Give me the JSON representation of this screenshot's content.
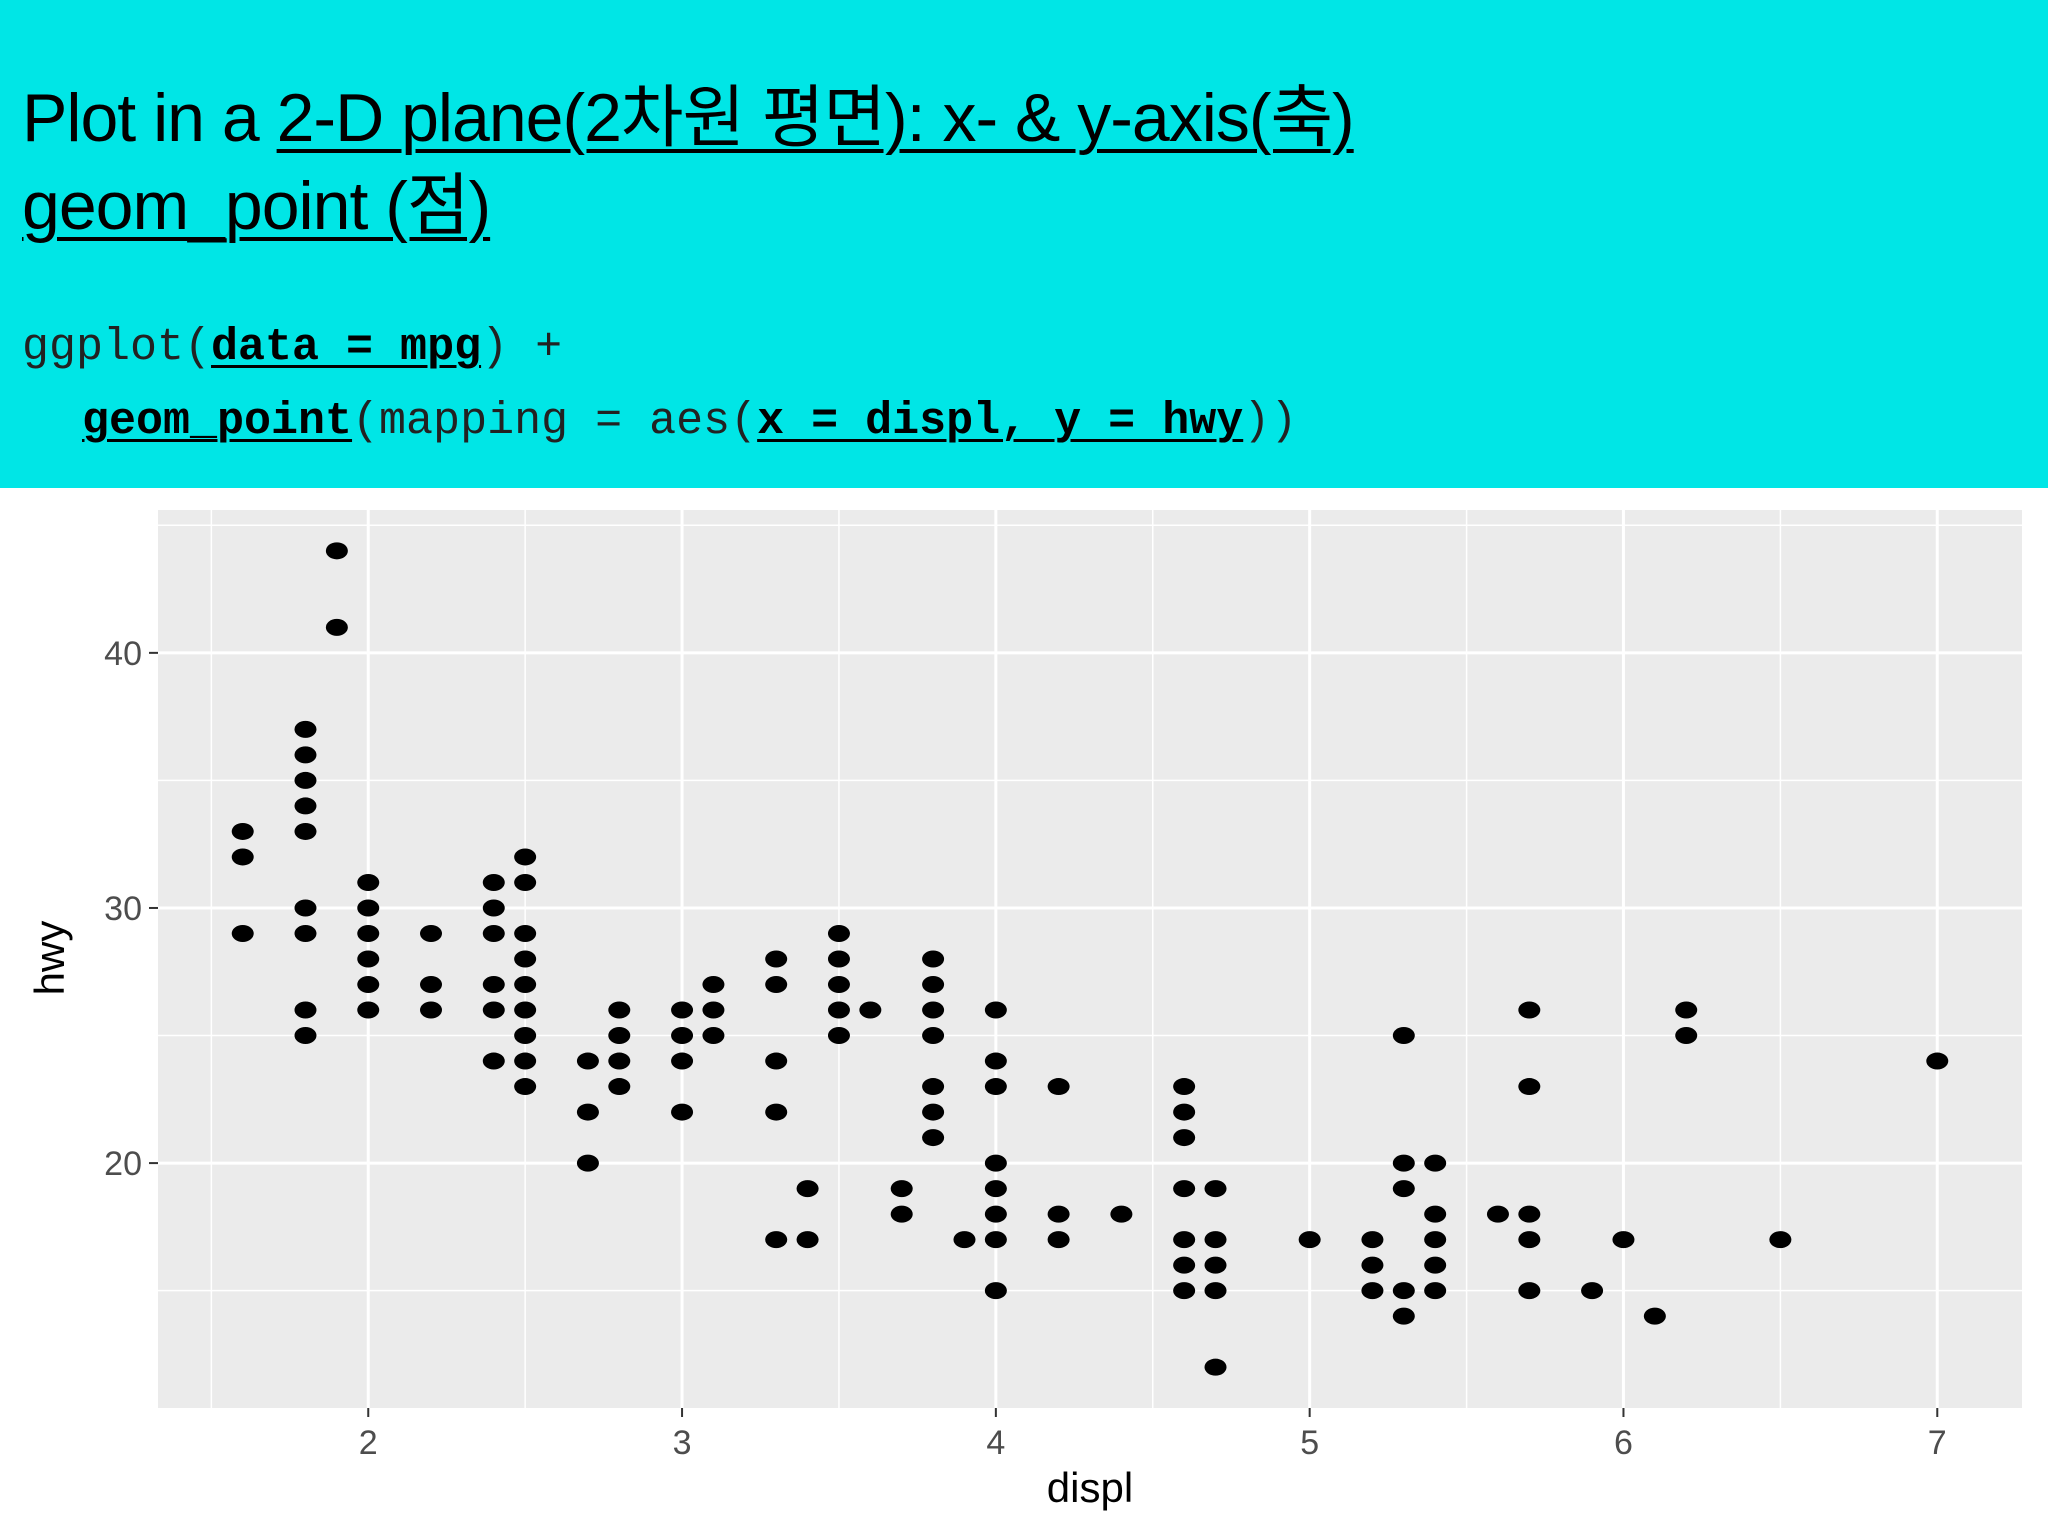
{
  "slide": {
    "title_line1_plain": "Plot in a ",
    "title_line1_underlined": "2-D plane(2차원 평면): x- & y-axis(축)",
    "title_line2": "geom_point (점)",
    "code": {
      "l1_a": "ggplot(",
      "l1_b": "data = mpg",
      "l1_c": ") +",
      "l2_a": "geom_point",
      "l2_b": "(mapping = aes(",
      "l2_c": "x = displ, y = hwy",
      "l2_d": "))"
    }
  },
  "colors": {
    "header_bg": "#00e6e6",
    "panel_bg": "#ebebeb",
    "grid": "#ffffff",
    "point": "#000000"
  },
  "chart_data": {
    "type": "scatter",
    "xlabel": "displ",
    "ylabel": "hwy",
    "xlim": [
      1.33,
      7.27
    ],
    "ylim": [
      10.4,
      45.6
    ],
    "x_ticks": [
      2,
      3,
      4,
      5,
      6,
      7
    ],
    "y_ticks": [
      20,
      30,
      40
    ],
    "grid": true,
    "points": [
      [
        1.6,
        33
      ],
      [
        1.6,
        32
      ],
      [
        1.6,
        29
      ],
      [
        1.8,
        37
      ],
      [
        1.8,
        36
      ],
      [
        1.8,
        35
      ],
      [
        1.8,
        34
      ],
      [
        1.8,
        33
      ],
      [
        1.8,
        30
      ],
      [
        1.8,
        29
      ],
      [
        1.8,
        26
      ],
      [
        1.8,
        25
      ],
      [
        1.9,
        44
      ],
      [
        1.9,
        41
      ],
      [
        2.0,
        31
      ],
      [
        2.0,
        30
      ],
      [
        2.0,
        29
      ],
      [
        2.0,
        28
      ],
      [
        2.0,
        27
      ],
      [
        2.0,
        26
      ],
      [
        2.2,
        29
      ],
      [
        2.2,
        27
      ],
      [
        2.2,
        26
      ],
      [
        2.4,
        31
      ],
      [
        2.4,
        30
      ],
      [
        2.4,
        29
      ],
      [
        2.4,
        27
      ],
      [
        2.4,
        26
      ],
      [
        2.4,
        24
      ],
      [
        2.5,
        32
      ],
      [
        2.5,
        31
      ],
      [
        2.5,
        29
      ],
      [
        2.5,
        28
      ],
      [
        2.5,
        27
      ],
      [
        2.5,
        26
      ],
      [
        2.5,
        25
      ],
      [
        2.5,
        24
      ],
      [
        2.5,
        23
      ],
      [
        2.7,
        24
      ],
      [
        2.7,
        22
      ],
      [
        2.7,
        20
      ],
      [
        2.8,
        26
      ],
      [
        2.8,
        25
      ],
      [
        2.8,
        24
      ],
      [
        2.8,
        23
      ],
      [
        3.0,
        26
      ],
      [
        3.0,
        25
      ],
      [
        3.0,
        24
      ],
      [
        3.0,
        22
      ],
      [
        3.1,
        27
      ],
      [
        3.1,
        26
      ],
      [
        3.1,
        25
      ],
      [
        3.3,
        28
      ],
      [
        3.3,
        27
      ],
      [
        3.3,
        24
      ],
      [
        3.3,
        22
      ],
      [
        3.3,
        17
      ],
      [
        3.4,
        19
      ],
      [
        3.4,
        17
      ],
      [
        3.5,
        29
      ],
      [
        3.5,
        28
      ],
      [
        3.5,
        27
      ],
      [
        3.5,
        26
      ],
      [
        3.5,
        25
      ],
      [
        3.6,
        26
      ],
      [
        3.7,
        19
      ],
      [
        3.7,
        18
      ],
      [
        3.8,
        28
      ],
      [
        3.8,
        27
      ],
      [
        3.8,
        26
      ],
      [
        3.8,
        25
      ],
      [
        3.8,
        23
      ],
      [
        3.8,
        22
      ],
      [
        3.8,
        21
      ],
      [
        3.9,
        17
      ],
      [
        4.0,
        26
      ],
      [
        4.0,
        24
      ],
      [
        4.0,
        23
      ],
      [
        4.0,
        20
      ],
      [
        4.0,
        19
      ],
      [
        4.0,
        18
      ],
      [
        4.0,
        17
      ],
      [
        4.0,
        15
      ],
      [
        4.2,
        23
      ],
      [
        4.2,
        18
      ],
      [
        4.2,
        17
      ],
      [
        4.4,
        18
      ],
      [
        4.6,
        23
      ],
      [
        4.6,
        22
      ],
      [
        4.6,
        21
      ],
      [
        4.6,
        19
      ],
      [
        4.6,
        17
      ],
      [
        4.6,
        16
      ],
      [
        4.6,
        15
      ],
      [
        4.7,
        19
      ],
      [
        4.7,
        17
      ],
      [
        4.7,
        16
      ],
      [
        4.7,
        15
      ],
      [
        4.7,
        12
      ],
      [
        5.0,
        17
      ],
      [
        5.2,
        17
      ],
      [
        5.2,
        16
      ],
      [
        5.2,
        15
      ],
      [
        5.3,
        25
      ],
      [
        5.3,
        20
      ],
      [
        5.3,
        19
      ],
      [
        5.3,
        15
      ],
      [
        5.3,
        14
      ],
      [
        5.4,
        20
      ],
      [
        5.4,
        18
      ],
      [
        5.4,
        17
      ],
      [
        5.4,
        16
      ],
      [
        5.4,
        15
      ],
      [
        5.6,
        18
      ],
      [
        5.7,
        26
      ],
      [
        5.7,
        23
      ],
      [
        5.7,
        18
      ],
      [
        5.7,
        17
      ],
      [
        5.7,
        15
      ],
      [
        5.9,
        15
      ],
      [
        6.0,
        17
      ],
      [
        6.1,
        14
      ],
      [
        6.2,
        26
      ],
      [
        6.2,
        25
      ],
      [
        6.5,
        17
      ],
      [
        7.0,
        24
      ]
    ]
  }
}
